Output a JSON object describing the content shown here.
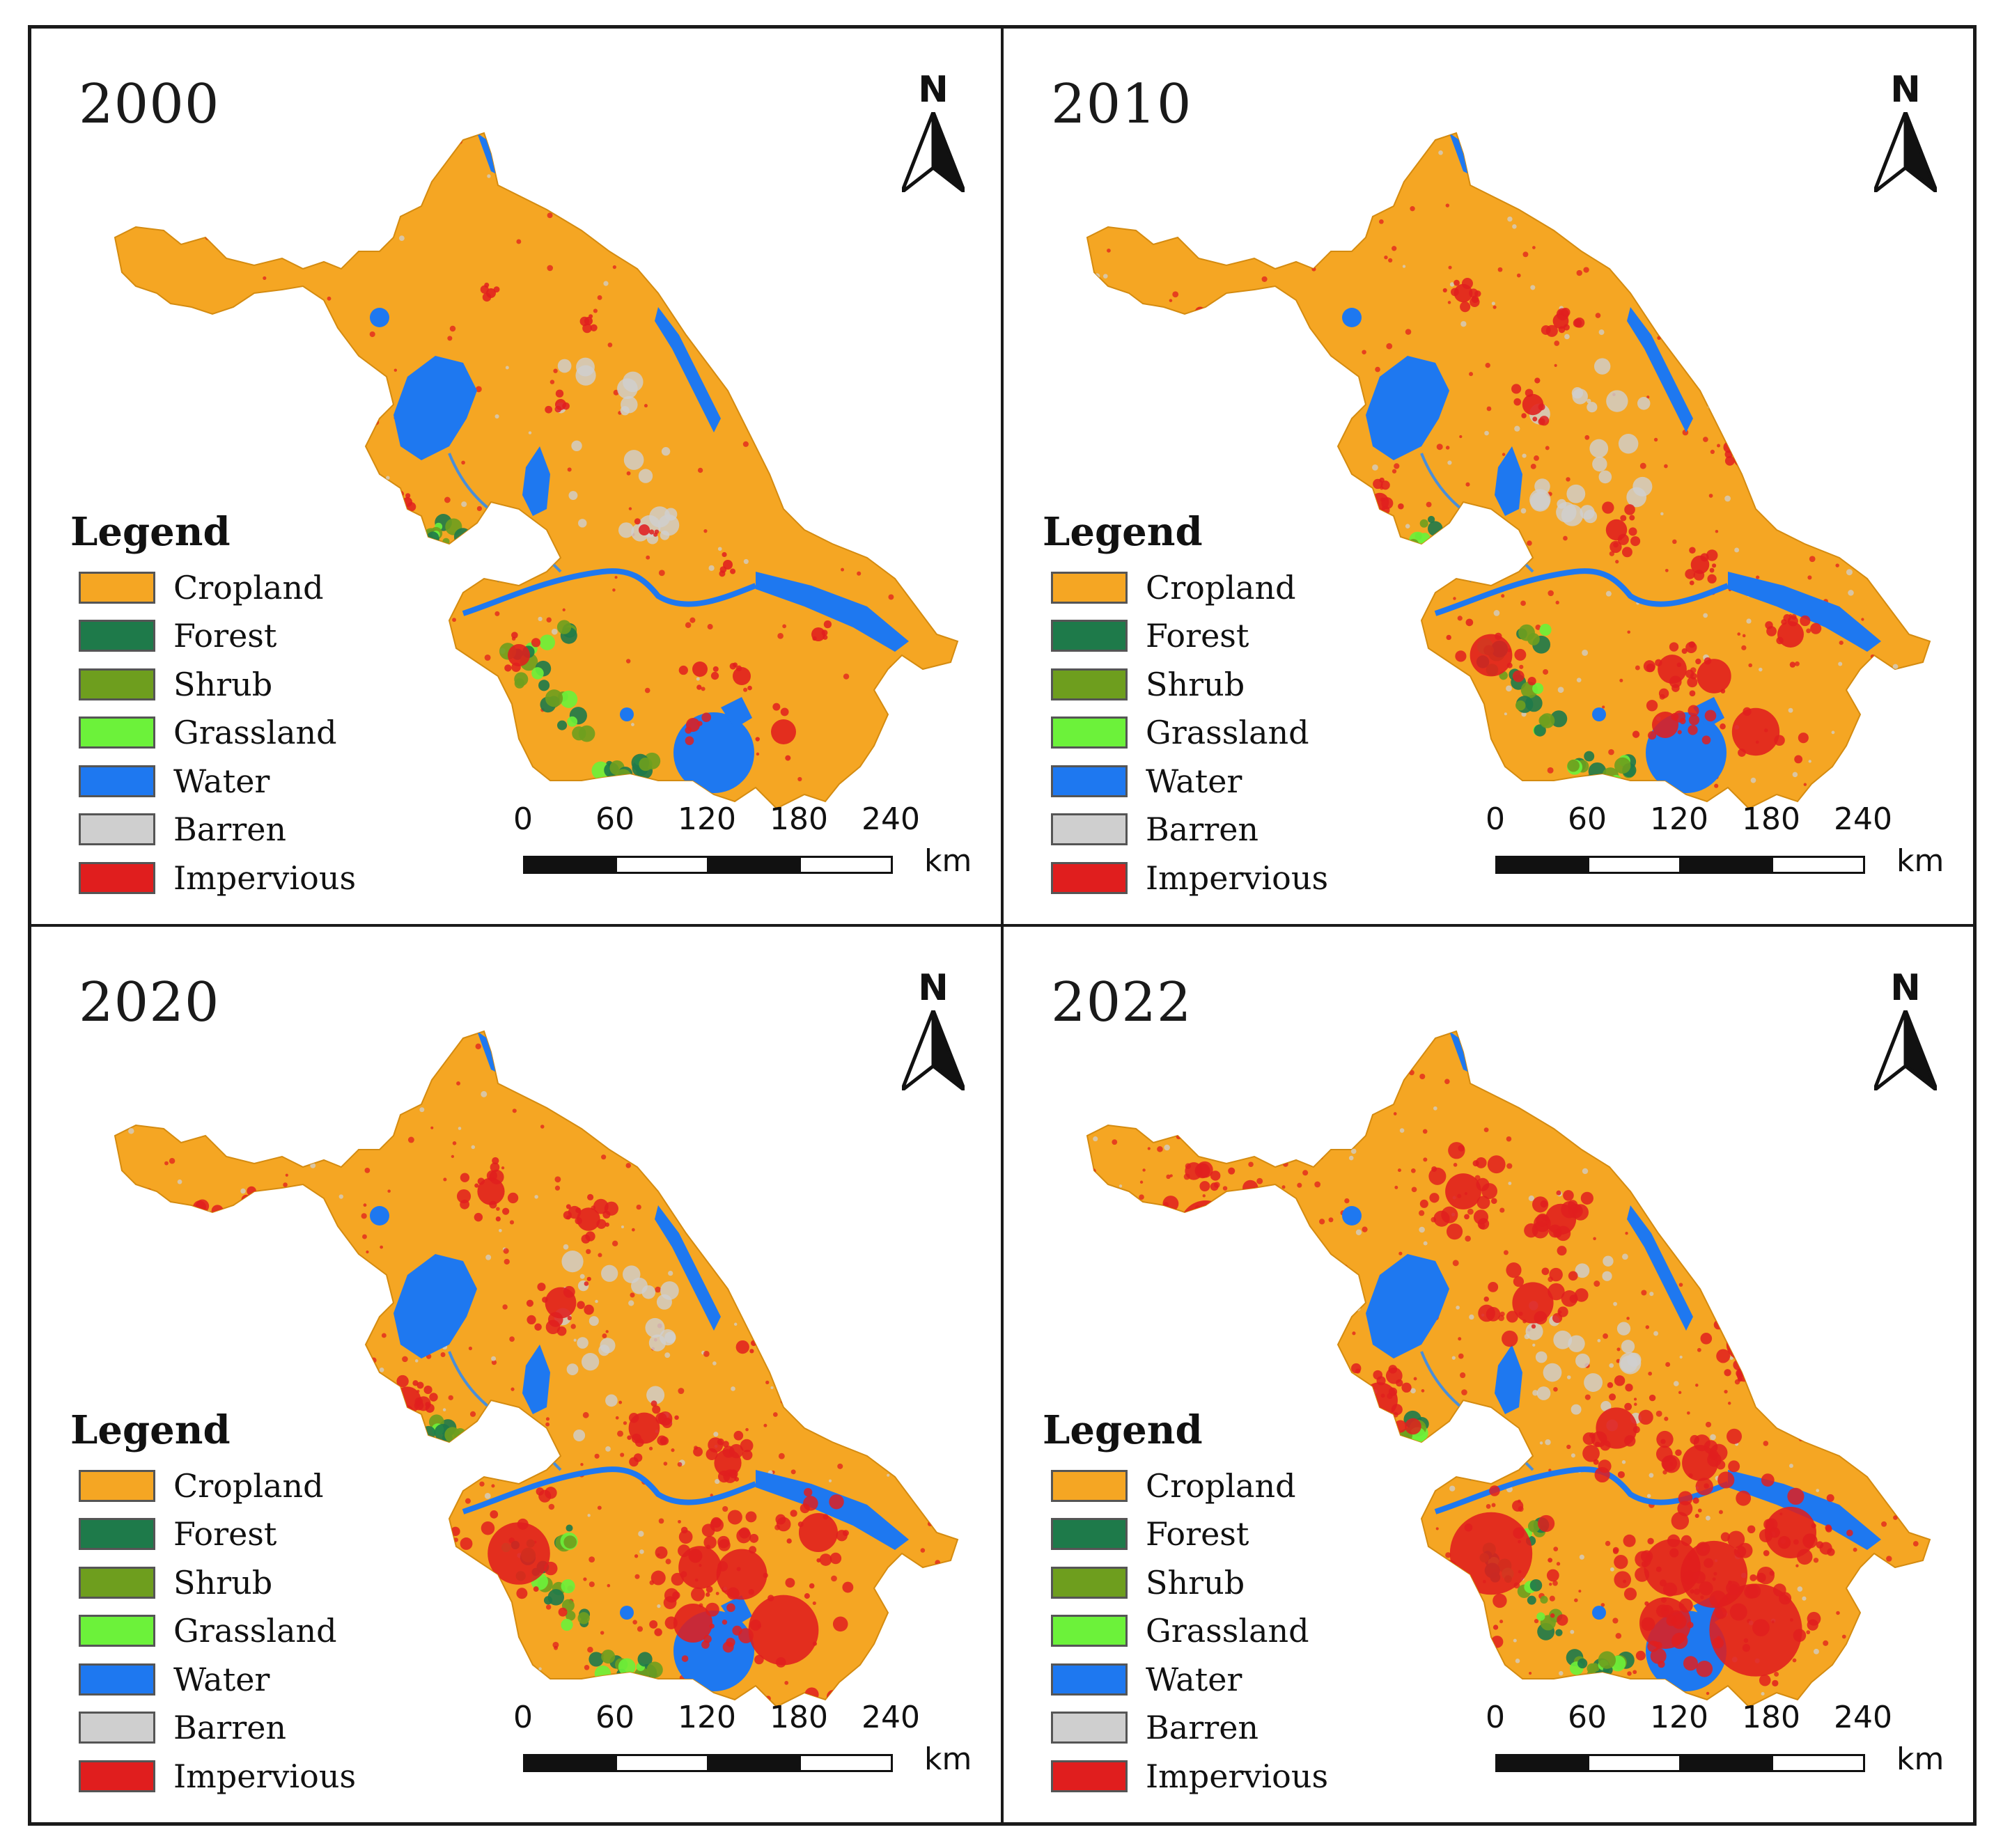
{
  "panels": [
    {
      "year": "2000",
      "urban": 0
    },
    {
      "year": "2010",
      "urban": 1
    },
    {
      "year": "2020",
      "urban": 2
    },
    {
      "year": "2022",
      "urban": 3
    }
  ],
  "legend": {
    "title": "Legend",
    "items": [
      {
        "label": "Cropland",
        "color": "#F5A623"
      },
      {
        "label": "Forest",
        "color": "#1E7A4A"
      },
      {
        "label": "Shrub",
        "color": "#6E9E1E"
      },
      {
        "label": "Grassland",
        "color": "#6CF23A"
      },
      {
        "label": "Water",
        "color": "#1E78F0"
      },
      {
        "label": "Barren",
        "color": "#CFCFCF"
      },
      {
        "label": "Impervious",
        "color": "#E01E1E"
      }
    ]
  },
  "north_arrow": {
    "label": "N"
  },
  "scale_bar": {
    "ticks": [
      "0",
      "60",
      "120",
      "180",
      "240"
    ],
    "unit": "km"
  }
}
